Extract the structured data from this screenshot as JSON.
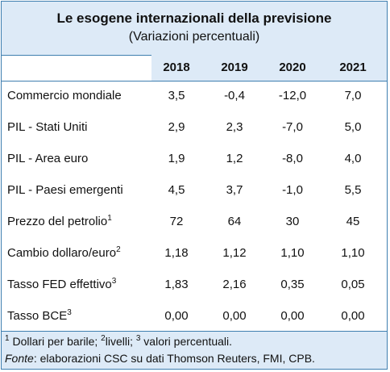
{
  "title": "Le esogene internazionali della previsione",
  "subtitle": "(Variazioni percentuali)",
  "columns": [
    "2018",
    "2019",
    "2020",
    "2021"
  ],
  "rows": [
    {
      "label": "Commercio mondiale",
      "sup": "",
      "values": [
        "3,5",
        "-0,4",
        "-12,0",
        "7,0"
      ]
    },
    {
      "label": "PIL - Stati Uniti",
      "sup": "",
      "values": [
        "2,9",
        "2,3",
        "-7,0",
        "5,0"
      ]
    },
    {
      "label": "PIL - Area euro",
      "sup": "",
      "values": [
        "1,9",
        "1,2",
        "-8,0",
        "4,0"
      ]
    },
    {
      "label": "PIL - Paesi emergenti",
      "sup": "",
      "values": [
        "4,5",
        "3,7",
        "-1,0",
        "5,5"
      ]
    },
    {
      "label": "Prezzo del petrolio",
      "sup": "1",
      "values": [
        "72",
        "64",
        "30",
        "45"
      ]
    },
    {
      "label": "Cambio dollaro/euro",
      "sup": "2",
      "values": [
        "1,18",
        "1,12",
        "1,10",
        "1,10"
      ]
    },
    {
      "label": "Tasso FED effettivo",
      "sup": "3",
      "values": [
        "1,83",
        "2,16",
        "0,35",
        "0,05"
      ]
    },
    {
      "label": "Tasso BCE",
      "sup": "3",
      "values": [
        "0,00",
        "0,00",
        "0,00",
        "0,00"
      ]
    }
  ],
  "notes": {
    "n1_sup": "1",
    "n1_text": " Dollari per barile; ",
    "n2_sup": "2",
    "n2_text": "livelli; ",
    "n3_sup": "3",
    "n3_text": " valori percentuali.",
    "source_label": "Fonte",
    "source_text": ": elaborazioni CSC su dati Thomson Reuters, FMI, CPB."
  }
}
